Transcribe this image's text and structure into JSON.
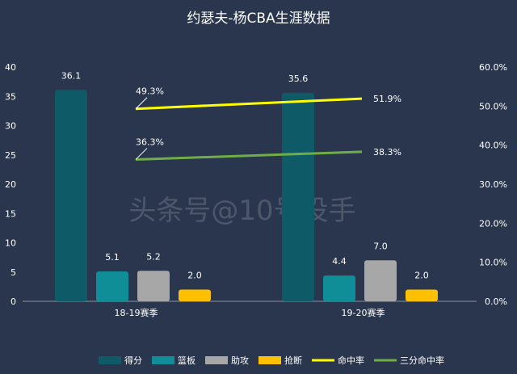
{
  "chart_data": {
    "type": "bar",
    "title": "约瑟夫-杨CBA生涯数据",
    "categories": [
      "18-19赛季",
      "19-20赛季"
    ],
    "ylim": [
      0,
      40
    ],
    "y2lim": [
      0,
      0.6
    ],
    "yticks": [
      "0",
      "5",
      "10",
      "15",
      "20",
      "25",
      "30",
      "35",
      "40"
    ],
    "y2ticks": [
      "0.0%",
      "10.0%",
      "20.0%",
      "30.0%",
      "40.0%",
      "50.0%",
      "60.0%"
    ],
    "series": [
      {
        "name": "得分",
        "kind": "bar",
        "axis": "left",
        "values": [
          36.1,
          35.6
        ],
        "labels": [
          "36.1",
          "35.6"
        ],
        "color": "#0e5a66"
      },
      {
        "name": "篮板",
        "kind": "bar",
        "axis": "left",
        "values": [
          5.1,
          4.4
        ],
        "labels": [
          "5.1",
          "4.4"
        ],
        "color": "#0f8e97"
      },
      {
        "name": "助攻",
        "kind": "bar",
        "axis": "left",
        "values": [
          5.2,
          7.0
        ],
        "labels": [
          "5.2",
          "7.0"
        ],
        "color": "#a7a7a7"
      },
      {
        "name": "抢断",
        "kind": "bar",
        "axis": "left",
        "values": [
          2.0,
          2.0
        ],
        "labels": [
          "2.0",
          "2.0"
        ],
        "color": "#ffc000"
      },
      {
        "name": "命中率",
        "kind": "line",
        "axis": "right",
        "values": [
          0.493,
          0.519
        ],
        "labels": [
          "49.3%",
          "51.9%"
        ],
        "color": "#ffff00"
      },
      {
        "name": "三分命中率",
        "kind": "line",
        "axis": "right",
        "values": [
          0.363,
          0.383
        ],
        "labels": [
          "36.3%",
          "38.3%"
        ],
        "color": "#70ad47"
      }
    ],
    "grid": false,
    "legend": "bottom",
    "watermark": "头条号@10号投手"
  }
}
